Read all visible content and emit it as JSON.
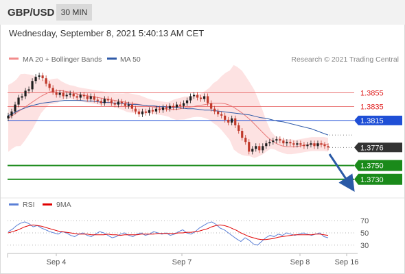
{
  "header": {
    "symbol": "GBP/USD",
    "timeframe": "30 MIN"
  },
  "timestamp": "Wednesday, September 8, 2021 5:40:13 AM CET",
  "legend": {
    "ma20_bb": "MA 20 + Bollinger Bands",
    "ma50": "MA 50",
    "copyright": "Research © 2021 Trading Central",
    "rsi": "RSI",
    "rsi_ma": "9MA"
  },
  "colors": {
    "bull": "#1e1e1e",
    "bear": "#c0392b",
    "ma20": "#e87878",
    "bollinger_fill": "#fde2e2",
    "ma50": "#2f5aa8",
    "resistance": "#e55a5a",
    "pivot": "#1f4fd6",
    "support": "#1a8a1a",
    "last_price": "#333333",
    "arrow": "#2a5aa6",
    "rsi": "#5a7fd6",
    "rsi_ma": "#e00000"
  },
  "chart_data": [
    {
      "type": "candlestick",
      "x_labels": [
        "Sep 4",
        "Sep 7",
        "Sep 8",
        "Sep 16"
      ],
      "ylim": [
        1.3712,
        1.3895
      ],
      "grid": false,
      "levels": [
        {
          "value": 1.3855,
          "label": "1.3855",
          "kind": "resistance"
        },
        {
          "value": 1.3835,
          "label": "1.3835",
          "kind": "resistance"
        },
        {
          "value": 1.3815,
          "label": "1.3815",
          "kind": "pivot"
        },
        {
          "value": 1.3776,
          "label": "1.3776",
          "kind": "last_price"
        },
        {
          "value": 1.375,
          "label": "1.3750",
          "kind": "support"
        },
        {
          "value": 1.373,
          "label": "1.3730",
          "kind": "support"
        }
      ],
      "closes": [
        1.3822,
        1.3828,
        1.3838,
        1.3848,
        1.385,
        1.3858,
        1.386,
        1.3872,
        1.3878,
        1.388,
        1.3876,
        1.3868,
        1.3862,
        1.3856,
        1.3852,
        1.3855,
        1.385,
        1.3852,
        1.3854,
        1.385,
        1.3848,
        1.3852,
        1.385,
        1.3846,
        1.385,
        1.3845,
        1.3843,
        1.384,
        1.3846,
        1.3844,
        1.384,
        1.3838,
        1.3842,
        1.384,
        1.3836,
        1.3838,
        1.3832,
        1.3828,
        1.3824,
        1.3828,
        1.3826,
        1.383,
        1.3828,
        1.3832,
        1.383,
        1.3834,
        1.3832,
        1.3836,
        1.3834,
        1.3838,
        1.3836,
        1.384,
        1.3844,
        1.385,
        1.3852,
        1.3848,
        1.3846,
        1.385,
        1.384,
        1.3832,
        1.3828,
        1.3824,
        1.3822,
        1.3816,
        1.3812,
        1.3818,
        1.3808,
        1.38,
        1.379,
        1.3784,
        1.377,
        1.3774,
        1.3778,
        1.3772,
        1.3778,
        1.3782,
        1.3784,
        1.3786,
        1.3788,
        1.3786,
        1.3782,
        1.3784,
        1.3782,
        1.378,
        1.3782,
        1.378,
        1.3778,
        1.378,
        1.3782,
        1.3778,
        1.3782,
        1.378,
        1.3778,
        1.3776
      ],
      "ma20": [
        1.3818,
        1.3822,
        1.3826,
        1.383,
        1.3834,
        1.3838,
        1.3842,
        1.3846,
        1.385,
        1.3853,
        1.3856,
        1.3857,
        1.3858,
        1.3858,
        1.3857,
        1.3856,
        1.3855,
        1.3853,
        1.3852,
        1.3851,
        1.385,
        1.3849,
        1.3848,
        1.3847,
        1.3846,
        1.3845,
        1.3844,
        1.3843,
        1.3842,
        1.3841,
        1.384,
        1.3839,
        1.3838,
        1.3837,
        1.3836,
        1.3835,
        1.3834,
        1.3833,
        1.3832,
        1.3831,
        1.3831,
        1.3831,
        1.3832,
        1.3833,
        1.3834,
        1.3835,
        1.3836,
        1.3837,
        1.3838,
        1.3839,
        1.384,
        1.384,
        1.384,
        1.3839,
        1.3837,
        1.3834,
        1.383,
        1.3826,
        1.3821,
        1.3816,
        1.381,
        1.3804,
        1.3798,
        1.3792,
        1.3787,
        1.3783,
        1.378,
        1.3778,
        1.3777,
        1.3777,
        1.3777,
        1.3778,
        1.3779,
        1.378,
        1.3781,
        1.3781,
        1.3781,
        1.3781,
        1.378
      ],
      "ma50": [
        1.3822,
        1.3826,
        1.383,
        1.3833,
        1.3836,
        1.3838,
        1.384,
        1.3841,
        1.3842,
        1.3843,
        1.3844,
        1.3844,
        1.3844,
        1.3844,
        1.3843,
        1.3843,
        1.3842,
        1.3841,
        1.3841,
        1.384,
        1.384,
        1.3839,
        1.3838,
        1.3838,
        1.3837,
        1.3836,
        1.3836,
        1.3835,
        1.3835,
        1.3834,
        1.3834,
        1.3833,
        1.3832,
        1.3832,
        1.3831,
        1.383,
        1.383,
        1.3829,
        1.3828,
        1.3827,
        1.3826,
        1.3825,
        1.3824,
        1.3823,
        1.3821,
        1.3819,
        1.3818,
        1.3816,
        1.3814,
        1.3813,
        1.3811,
        1.3809,
        1.3807,
        1.3805,
        1.3803,
        1.38,
        1.3797,
        1.3794
      ]
    },
    {
      "type": "line",
      "name": "RSI",
      "ylim": [
        22,
        78
      ],
      "ticks": [
        70,
        50,
        30
      ],
      "rsi": [
        52,
        56,
        62,
        66,
        68,
        65,
        60,
        62,
        58,
        55,
        52,
        50,
        48,
        52,
        50,
        46,
        44,
        48,
        50,
        46,
        44,
        48,
        52,
        50,
        46,
        42,
        44,
        48,
        50,
        46,
        44,
        48,
        50,
        46,
        48,
        52,
        50,
        48,
        50,
        46,
        48,
        52,
        55,
        50,
        48,
        52,
        58,
        62,
        66,
        68,
        64,
        58,
        55,
        50,
        45,
        40,
        36,
        42,
        38,
        32,
        30,
        36,
        42,
        46,
        44,
        48,
        46,
        50,
        48,
        46,
        48,
        50,
        48,
        46,
        48,
        50,
        44,
        42
      ],
      "rsi_ma": [
        50,
        52,
        54,
        57,
        60,
        62,
        63,
        62,
        61,
        59,
        57,
        55,
        53,
        52,
        51,
        50,
        49,
        48,
        48,
        48,
        47,
        47,
        47,
        47,
        48,
        47,
        47,
        46,
        47,
        47,
        47,
        47,
        48,
        48,
        48,
        48,
        49,
        49,
        49,
        49,
        49,
        50,
        50,
        51,
        51,
        52,
        53,
        55,
        57,
        60,
        62,
        63,
        62,
        60,
        57,
        54,
        50,
        47,
        44,
        42,
        40,
        39,
        39,
        40,
        41,
        43,
        44,
        45,
        46,
        47,
        47,
        47,
        47,
        47,
        48,
        48,
        47,
        46
      ]
    }
  ]
}
